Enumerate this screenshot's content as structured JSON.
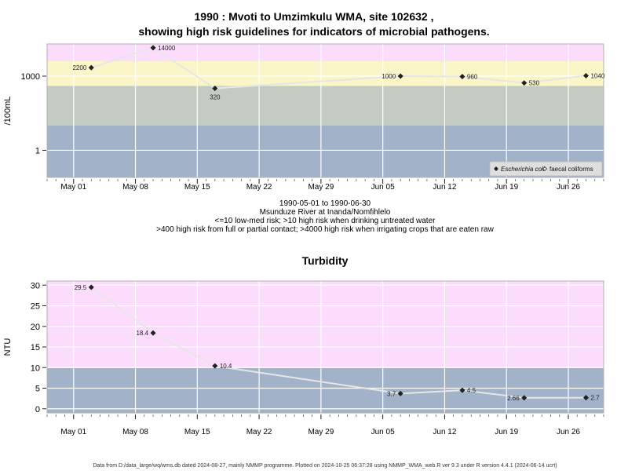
{
  "title_line1": "1990 : Mvoti to Umzimkulu WMA, site 102632 ,",
  "title_line2": "showing high risk guidelines for indicators of microbial pathogens.",
  "subtitle_lines": [
    "1990-05-01 to 1990-06-30",
    "Msunduze River at Inanda/Nomfihlelo",
    "<=10 low-med risk; >10 high risk when drinking untreated water",
    ">400 high risk from full or partial contact; >4000 high risk when irrigating crops that are eaten raw"
  ],
  "footer": "Data from D:/data_large/wq/wms.db dated 2024-08-27, mainly NMMP programme. Plotted on 2024-10-25 06:37:28 using NMMP_WMA_web.R ver 9.3 under R version 4.4.1 (2024-06-14 ucrt)",
  "colors": {
    "background": "#ffffff",
    "band_pink": "#fcdcfc",
    "band_yellow": "#fbf6c7",
    "band_sage": "#c3cbc2",
    "band_blue": "#a2b2c9",
    "gridline": "#ffffff",
    "series_line": "#e6e6e6",
    "marker": "#222222"
  },
  "chart_data": [
    {
      "type": "line",
      "id": "microbial",
      "title": "",
      "xlabel": "",
      "ylabel": "/100mL",
      "y_scale": "log10",
      "ylim": [
        0.08,
        20000
      ],
      "xlim": [
        "1990-04-28",
        "1990-06-30"
      ],
      "x_tick_labels": [
        "May 01",
        "May 08",
        "May 15",
        "May 22",
        "May 29",
        "Jun 05",
        "Jun 12",
        "Jun 19",
        "Jun 26"
      ],
      "x_tick_dates": [
        "1990-05-01",
        "1990-05-08",
        "1990-05-15",
        "1990-05-22",
        "1990-05-29",
        "1990-06-05",
        "1990-06-12",
        "1990-06-19",
        "1990-06-26"
      ],
      "y_ticks": [
        1,
        1000
      ],
      "y_tick_labels": [
        "1",
        "1000"
      ],
      "bands": [
        {
          "from": 0.08,
          "to": 10,
          "color": "#a2b2c9"
        },
        {
          "from": 10,
          "to": 400,
          "color": "#c3cbc2"
        },
        {
          "from": 400,
          "to": 4000,
          "color": "#fbf6c7"
        },
        {
          "from": 4000,
          "to": 20000,
          "color": "#fcdcfc"
        }
      ],
      "legend_position": "bottom-right",
      "legend": [
        {
          "label": "Escherichia coli",
          "marker": "filled-diamond"
        },
        {
          "label": "faecal coliforms",
          "marker": "open-diamond"
        }
      ],
      "series": [
        {
          "name": "Escherichia coli",
          "x": [
            "1990-05-03",
            "1990-05-10",
            "1990-05-17",
            "1990-06-07",
            "1990-06-14",
            "1990-06-21",
            "1990-06-28"
          ],
          "values": [
            2200,
            14000,
            320,
            1000,
            960,
            530,
            1040
          ],
          "labels": [
            "2200",
            "14000",
            "320",
            "1000",
            "960",
            "530",
            "1040"
          ],
          "label_sides": [
            "left",
            "right",
            "below",
            "left",
            "right",
            "right",
            "right"
          ]
        }
      ]
    },
    {
      "type": "line",
      "id": "turbidity",
      "title": "Turbidity",
      "xlabel": "",
      "ylabel": "NTU",
      "y_scale": "linear",
      "ylim": [
        -1,
        31
      ],
      "xlim": [
        "1990-04-28",
        "1990-06-30"
      ],
      "x_tick_labels": [
        "May 01",
        "May 08",
        "May 15",
        "May 22",
        "May 29",
        "Jun 05",
        "Jun 12",
        "Jun 19",
        "Jun 26"
      ],
      "x_tick_dates": [
        "1990-05-01",
        "1990-05-08",
        "1990-05-15",
        "1990-05-22",
        "1990-05-29",
        "1990-06-05",
        "1990-06-12",
        "1990-06-19",
        "1990-06-26"
      ],
      "y_ticks": [
        0,
        5,
        10,
        15,
        20,
        25,
        30
      ],
      "y_tick_labels": [
        "0",
        "5",
        "10",
        "15",
        "20",
        "25",
        "30"
      ],
      "bands": [
        {
          "from": -1,
          "to": 10,
          "color": "#a2b2c9"
        },
        {
          "from": 10,
          "to": 31,
          "color": "#fcdcfc"
        }
      ],
      "series": [
        {
          "name": "",
          "x": [
            "1990-05-03",
            "1990-05-10",
            "1990-05-17",
            "1990-06-07",
            "1990-06-14",
            "1990-06-21",
            "1990-06-28"
          ],
          "values": [
            29.5,
            18.4,
            10.4,
            3.7,
            4.5,
            2.66,
            2.7
          ],
          "labels": [
            "29.5",
            "18.4",
            "10.4",
            "3.7",
            "4.5",
            "2.66",
            "2.7"
          ],
          "label_sides": [
            "left",
            "left",
            "right",
            "left",
            "right",
            "left",
            "right"
          ]
        }
      ]
    }
  ]
}
